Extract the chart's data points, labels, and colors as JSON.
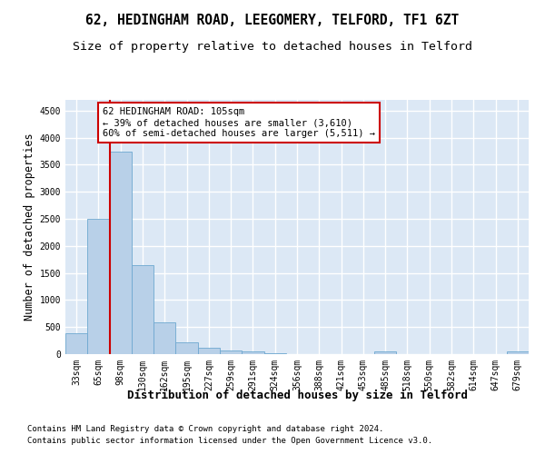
{
  "title1": "62, HEDINGHAM ROAD, LEEGOMERY, TELFORD, TF1 6ZT",
  "title2": "Size of property relative to detached houses in Telford",
  "xlabel": "Distribution of detached houses by size in Telford",
  "ylabel": "Number of detached properties",
  "footer1": "Contains HM Land Registry data © Crown copyright and database right 2024.",
  "footer2": "Contains public sector information licensed under the Open Government Licence v3.0.",
  "bins": [
    "33sqm",
    "65sqm",
    "98sqm",
    "130sqm",
    "162sqm",
    "195sqm",
    "227sqm",
    "259sqm",
    "291sqm",
    "324sqm",
    "356sqm",
    "388sqm",
    "421sqm",
    "453sqm",
    "485sqm",
    "518sqm",
    "550sqm",
    "582sqm",
    "614sqm",
    "647sqm",
    "679sqm"
  ],
  "values": [
    390,
    2500,
    3750,
    1640,
    590,
    220,
    110,
    60,
    50,
    20,
    0,
    0,
    0,
    0,
    50,
    0,
    0,
    0,
    0,
    0,
    50
  ],
  "bar_color": "#b8d0e8",
  "bar_edge_color": "#6ea8d0",
  "vline_color": "#cc0000",
  "annotation_text": "62 HEDINGHAM ROAD: 105sqm\n← 39% of detached houses are smaller (3,610)\n60% of semi-detached houses are larger (5,511) →",
  "annotation_box_color": "#ffffff",
  "annotation_box_edge": "#cc0000",
  "ylim": [
    0,
    4700
  ],
  "yticks": [
    0,
    500,
    1000,
    1500,
    2000,
    2500,
    3000,
    3500,
    4000,
    4500
  ],
  "bg_color": "#dce8f5",
  "grid_color": "#ffffff",
  "title_fontsize": 10.5,
  "subtitle_fontsize": 9.5,
  "ylabel_fontsize": 8.5,
  "xlabel_fontsize": 9,
  "tick_fontsize": 7,
  "footer_fontsize": 6.5
}
